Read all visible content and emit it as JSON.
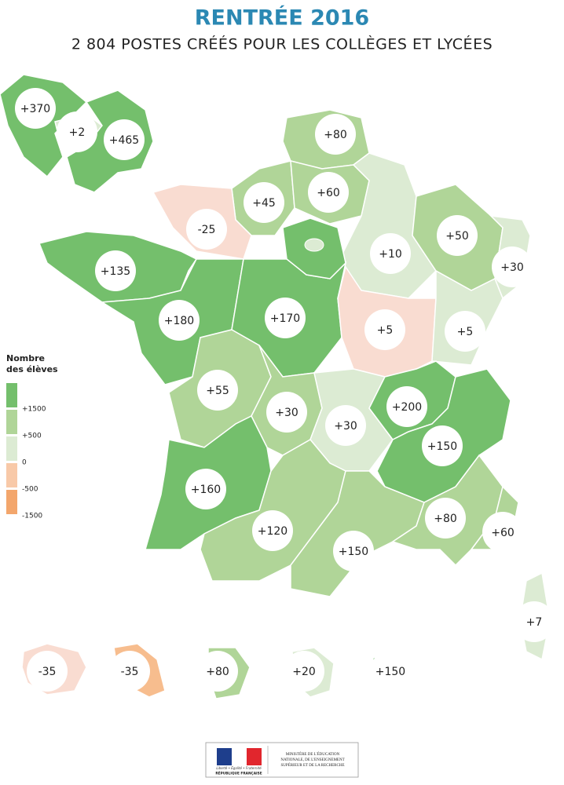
{
  "header": {
    "title": "RENTRÉE 2016",
    "subtitle": "2 804 POSTES CRÉÉS POUR LES COLLÈGES ET LYCÉES"
  },
  "legend": {
    "title": [
      "Nombre",
      "des élèves"
    ],
    "items": [
      {
        "label": "+1500",
        "color": "#74bf6c"
      },
      {
        "label": "+500",
        "color": "#b0d598"
      },
      {
        "label": "0",
        "color": "#dcebd3"
      },
      {
        "label": "-500",
        "color": "#f8c9a8"
      },
      {
        "label": "-1500",
        "color": "#f3a66c"
      }
    ]
  },
  "regions": [
    {
      "label": "+370",
      "color": "#74bf6c"
    },
    {
      "label": "+2",
      "color": "#dcebd3"
    },
    {
      "label": "+465",
      "color": "#74bf6c"
    },
    {
      "label": "+80",
      "color": "#b0d598"
    },
    {
      "label": "+45",
      "color": "#b0d598"
    },
    {
      "label": "+60",
      "color": "#b0d598"
    },
    {
      "label": "-25",
      "color": "#f9dcd1"
    },
    {
      "label": "+10",
      "color": "#dcebd3"
    },
    {
      "label": "+50",
      "color": "#b0d598"
    },
    {
      "label": "+30",
      "color": "#dcebd3"
    },
    {
      "label": "+135",
      "color": "#74bf6c"
    },
    {
      "label": "+180",
      "color": "#74bf6c"
    },
    {
      "label": "+170",
      "color": "#74bf6c"
    },
    {
      "label": "+5",
      "color": "#f9dcd1"
    },
    {
      "label": "+5",
      "color": "#dcebd3"
    },
    {
      "label": "+55",
      "color": "#b0d598"
    },
    {
      "label": "+30",
      "color": "#b0d598"
    },
    {
      "label": "+30",
      "color": "#dcebd3"
    },
    {
      "label": "+200",
      "color": "#74bf6c"
    },
    {
      "label": "+150",
      "color": "#74bf6c"
    },
    {
      "label": "+160",
      "color": "#74bf6c"
    },
    {
      "label": "+120",
      "color": "#b0d598"
    },
    {
      "label": "+150",
      "color": "#b0d598"
    },
    {
      "label": "+80",
      "color": "#b0d598"
    },
    {
      "label": "+60",
      "color": "#b0d598"
    },
    {
      "label": "+7",
      "color": "#dcebd3"
    },
    {
      "label": "-35",
      "color": "#f9dcd1"
    },
    {
      "label": "-35",
      "color": "#f7bd8e"
    },
    {
      "label": "+80",
      "color": "#b0d598"
    },
    {
      "label": "+20",
      "color": "#dcebd3"
    },
    {
      "label": "+150",
      "color": "#74bf6c"
    }
  ],
  "footer": {
    "emblem": [
      "Liberté • Égalité • Fraternité",
      "RÉPUBLIQUE FRANÇAISE"
    ],
    "ministry": [
      "MINISTÈRE DE L'ÉDUCATION",
      "NATIONALE, DE L'ENSEIGNEMENT",
      "SUPÉRIEUR ET DE LA RECHERCHE"
    ]
  }
}
